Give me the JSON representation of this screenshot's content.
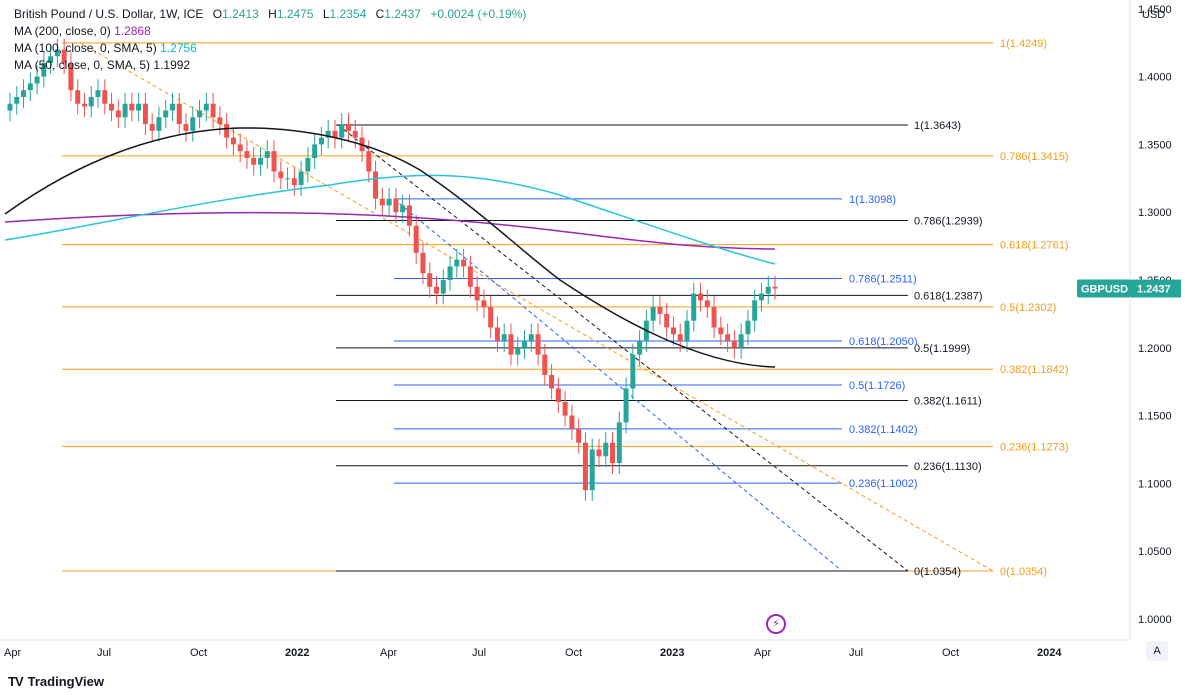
{
  "header": {
    "symbol_title": "British Pound / U.S. Dollar, 1W, ICE",
    "open_label": "O",
    "open": "1.2413",
    "high_label": "H",
    "high": "1.2475",
    "low_label": "L",
    "low": "1.2354",
    "close_label": "C",
    "close": "1.2437",
    "change": "+0.0024 (+0.19%)",
    "ma200_label": "MA (200, close, 0)",
    "ma200_value": "1.2868",
    "ma100_label": "MA (100, close, 0, SMA, 5)",
    "ma100_value": "1.2756",
    "ma50_label": "MA (50, close, 0, SMA, 5)",
    "ma50_value": "1.1992"
  },
  "colors": {
    "up": "#26a69a",
    "down": "#ef5350",
    "ma200": "#9c27b0",
    "ma100": "#26c6da",
    "ma50": "#131722",
    "fib_orange": "#f5a623",
    "fib_black": "#131722",
    "fib_blue": "#2962ff",
    "price_tag": "#26a69a"
  },
  "branding": "TradingView",
  "auto_button": "A",
  "chart_data": {
    "type": "candlestick",
    "title": "British Pound / U.S. Dollar, 1W, ICE",
    "currency_label": "USD",
    "current_price_label": "GBPUSD",
    "current_price": 1.2437,
    "ylim": [
      0.9845,
      1.4565
    ],
    "y_ticks": [
      "1.4500",
      "1.4000",
      "1.3500",
      "1.3000",
      "1.2500",
      "1.2000",
      "1.1500",
      "1.1000",
      "1.0500",
      "1.0000"
    ],
    "x_ticks": [
      "Apr",
      "Jul",
      "Oct",
      "2022",
      "Apr",
      "Jul",
      "Oct",
      "2023",
      "Apr",
      "Jul",
      "Oct",
      "2024"
    ],
    "x_ticks_bold": [
      false,
      false,
      false,
      true,
      false,
      false,
      false,
      true,
      false,
      false,
      false,
      true
    ],
    "candles_approx_weekly_close": [
      1.38,
      1.385,
      1.39,
      1.395,
      1.4,
      1.41,
      1.415,
      1.42,
      1.41,
      1.39,
      1.38,
      1.378,
      1.385,
      1.39,
      1.38,
      1.375,
      1.37,
      1.38,
      1.375,
      1.38,
      1.365,
      1.36,
      1.37,
      1.375,
      1.38,
      1.365,
      1.36,
      1.37,
      1.375,
      1.38,
      1.37,
      1.365,
      1.355,
      1.35,
      1.345,
      1.34,
      1.335,
      1.34,
      1.345,
      1.33,
      1.325,
      1.325,
      1.32,
      1.33,
      1.34,
      1.35,
      1.355,
      1.36,
      1.355,
      1.365,
      1.36,
      1.355,
      1.345,
      1.33,
      1.31,
      1.305,
      1.31,
      1.3,
      1.305,
      1.29,
      1.27,
      1.255,
      1.245,
      1.24,
      1.25,
      1.26,
      1.265,
      1.26,
      1.245,
      1.235,
      1.23,
      1.215,
      1.205,
      1.21,
      1.195,
      1.2,
      1.205,
      1.21,
      1.195,
      1.18,
      1.17,
      1.16,
      1.15,
      1.14,
      1.13,
      1.095,
      1.125,
      1.12,
      1.13,
      1.115,
      1.145,
      1.17,
      1.195,
      1.205,
      1.22,
      1.23,
      1.225,
      1.215,
      1.21,
      1.205,
      1.22,
      1.24,
      1.235,
      1.23,
      1.215,
      1.21,
      1.205,
      1.2,
      1.21,
      1.22,
      1.235,
      1.24,
      1.245,
      1.2437
    ],
    "moving_averages": [
      {
        "name": "MA (200, close, 0)",
        "value": 1.2868
      },
      {
        "name": "MA (100, close, 0, SMA, 5)",
        "value": 1.2756
      },
      {
        "name": "MA (50, close, 0, SMA, 5)",
        "value": 1.1992
      }
    ],
    "fib_orange": [
      {
        "label": "1(1.4249)",
        "level": 1.4249
      },
      {
        "label": "0.786(1.3415)",
        "level": 1.3415
      },
      {
        "label": "0.618(1.2761)",
        "level": 1.2761
      },
      {
        "label": "0.5(1.2302)",
        "level": 1.2302
      },
      {
        "label": "0.382(1.1842)",
        "level": 1.1842
      },
      {
        "label": "0.236(1.1273)",
        "level": 1.1273
      },
      {
        "label": "0(1.0354)",
        "level": 1.0354
      }
    ],
    "fib_black": [
      {
        "label": "1(1.3643)",
        "level": 1.3643
      },
      {
        "label": "0.786(1.2939)",
        "level": 1.2939
      },
      {
        "label": "0.618(1.2387)",
        "level": 1.2387
      },
      {
        "label": "0.5(1.1999)",
        "level": 1.1999
      },
      {
        "label": "0.382(1.1611)",
        "level": 1.1611
      },
      {
        "label": "0.236(1.1130)",
        "level": 1.113
      },
      {
        "label": "0(1.0354)",
        "level": 1.0354
      }
    ],
    "fib_blue": [
      {
        "label": "1(1.3098)",
        "level": 1.3098
      },
      {
        "label": "0.786(1.2511)",
        "level": 1.2511
      },
      {
        "label": "0.618(1.2050)",
        "level": 1.205
      },
      {
        "label": "0.5(1.1726)",
        "level": 1.1726
      },
      {
        "label": "0.382(1.1402)",
        "level": 1.1402
      },
      {
        "label": "0.236(1.1002)",
        "level": 1.1002
      }
    ]
  }
}
